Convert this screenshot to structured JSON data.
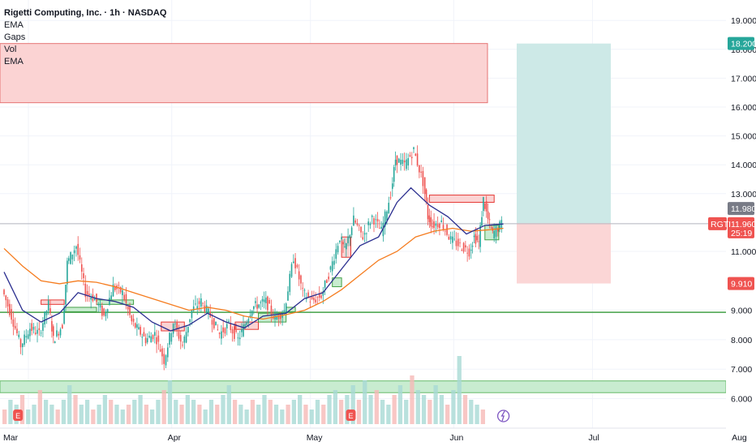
{
  "header": {
    "title": "Rigetti Computing, Inc. · 1h · NASDAQ",
    "indicators": [
      "EMA",
      "Gaps",
      "Vol",
      "EMA"
    ]
  },
  "colors": {
    "up": "#26a69a",
    "down": "#ef5350",
    "ema_fast": "#2a2e8f",
    "ema_slow": "#f57c1f",
    "support_line": "#43a047",
    "gap_up_fill": "#c8ecd0",
    "gap_down_fill": "#fbd3d3",
    "target_fill": "#cde9e7",
    "stop_fill": "#fbd6d6",
    "grid": "#f0f3fa"
  },
  "chart_data": {
    "type": "candlestick",
    "symbol": "RGTI",
    "ylim": [
      5.0,
      19.0
    ],
    "y_ticks": [
      "6.000",
      "7.000",
      "8.000",
      "9.000",
      "11.000",
      "13.000",
      "14.000",
      "15.000",
      "16.000",
      "17.000",
      "18.000",
      "19.000"
    ],
    "x_ticks": [
      "Mar",
      "Apr",
      "May",
      "Jun",
      "Jul",
      "Aug"
    ],
    "dates_start": "2025-03-01",
    "price_labels": {
      "target": "18.200",
      "entry": "11.980",
      "last_symbol": "RGTI",
      "last_price": "11.960",
      "countdown": "25:19",
      "stop": "9.910"
    },
    "levels": {
      "target": 18.2,
      "entry": 11.98,
      "last": 11.96,
      "stop": 9.91,
      "support_line": 8.93,
      "resistance_zone": [
        16.15,
        18.2
      ],
      "support_zone": [
        6.2,
        6.6
      ]
    },
    "price_path": [
      [
        "2025-03-01",
        9.7
      ],
      [
        "2025-03-03",
        8.8
      ],
      [
        "2025-03-05",
        7.8
      ],
      [
        "2025-03-07",
        8.4
      ],
      [
        "2025-03-09",
        8.2
      ],
      [
        "2025-03-11",
        9.2
      ],
      [
        "2025-03-12",
        8.0
      ],
      [
        "2025-03-14",
        8.5
      ],
      [
        "2025-03-15",
        10.6
      ],
      [
        "2025-03-17",
        11.2
      ],
      [
        "2025-03-19",
        9.6
      ],
      [
        "2025-03-21",
        9.4
      ],
      [
        "2025-03-23",
        8.8
      ],
      [
        "2025-03-25",
        9.8
      ],
      [
        "2025-03-27",
        9.6
      ],
      [
        "2025-03-29",
        8.6
      ],
      [
        "2025-04-01",
        8.0
      ],
      [
        "2025-04-03",
        8.2
      ],
      [
        "2025-04-05",
        7.3
      ],
      [
        "2025-04-07",
        8.6
      ],
      [
        "2025-04-09",
        7.8
      ],
      [
        "2025-04-11",
        9.0
      ],
      [
        "2025-04-13",
        9.3
      ],
      [
        "2025-04-15",
        8.8
      ],
      [
        "2025-04-17",
        8.2
      ],
      [
        "2025-04-19",
        8.5
      ],
      [
        "2025-04-21",
        8.0
      ],
      [
        "2025-04-24",
        9.1
      ],
      [
        "2025-04-27",
        9.3
      ],
      [
        "2025-04-29",
        8.7
      ],
      [
        "2025-05-01",
        9.0
      ],
      [
        "2025-05-03",
        10.8
      ],
      [
        "2025-05-05",
        9.6
      ],
      [
        "2025-05-07",
        9.3
      ],
      [
        "2025-05-09",
        9.5
      ],
      [
        "2025-05-11",
        10.4
      ],
      [
        "2025-05-13",
        11.5
      ],
      [
        "2025-05-14",
        11.0
      ],
      [
        "2025-05-16",
        12.1
      ],
      [
        "2025-05-18",
        11.5
      ],
      [
        "2025-05-20",
        12.2
      ],
      [
        "2025-05-22",
        11.7
      ],
      [
        "2025-05-24",
        13.0
      ],
      [
        "2025-05-25",
        14.2
      ],
      [
        "2025-05-27",
        14.0
      ],
      [
        "2025-05-29",
        14.5
      ],
      [
        "2025-05-31",
        13.4
      ],
      [
        "2025-06-01",
        12.2
      ],
      [
        "2025-06-02",
        11.9
      ],
      [
        "2025-06-04",
        12.0
      ],
      [
        "2025-06-06",
        11.4
      ],
      [
        "2025-06-08",
        11.2
      ],
      [
        "2025-06-10",
        11.0
      ],
      [
        "2025-06-11",
        11.5
      ],
      [
        "2025-06-12",
        11.3
      ],
      [
        "2025-06-13",
        12.8
      ],
      [
        "2025-06-14",
        12.1
      ],
      [
        "2025-06-15",
        11.6
      ],
      [
        "2025-06-17",
        11.96
      ]
    ],
    "ema_fast": [
      [
        "2025-03-01",
        10.3
      ],
      [
        "2025-03-05",
        9.0
      ],
      [
        "2025-03-09",
        8.6
      ],
      [
        "2025-03-13",
        8.9
      ],
      [
        "2025-03-17",
        9.6
      ],
      [
        "2025-03-21",
        9.4
      ],
      [
        "2025-03-25",
        9.3
      ],
      [
        "2025-03-29",
        9.1
      ],
      [
        "2025-04-02",
        8.6
      ],
      [
        "2025-04-06",
        8.3
      ],
      [
        "2025-04-10",
        8.5
      ],
      [
        "2025-04-14",
        8.9
      ],
      [
        "2025-04-18",
        8.6
      ],
      [
        "2025-04-22",
        8.4
      ],
      [
        "2025-04-26",
        8.8
      ],
      [
        "2025-05-01",
        8.9
      ],
      [
        "2025-05-05",
        9.4
      ],
      [
        "2025-05-09",
        9.6
      ],
      [
        "2025-05-13",
        10.4
      ],
      [
        "2025-05-17",
        11.2
      ],
      [
        "2025-05-21",
        11.5
      ],
      [
        "2025-05-25",
        12.7
      ],
      [
        "2025-05-28",
        13.2
      ],
      [
        "2025-06-01",
        12.6
      ],
      [
        "2025-06-05",
        12.2
      ],
      [
        "2025-06-09",
        11.6
      ],
      [
        "2025-06-13",
        11.9
      ],
      [
        "2025-06-17",
        11.95
      ]
    ],
    "ema_slow": [
      [
        "2025-03-01",
        11.1
      ],
      [
        "2025-03-05",
        10.5
      ],
      [
        "2025-03-09",
        10.0
      ],
      [
        "2025-03-13",
        9.9
      ],
      [
        "2025-03-17",
        10.0
      ],
      [
        "2025-03-21",
        9.95
      ],
      [
        "2025-03-25",
        9.8
      ],
      [
        "2025-03-29",
        9.6
      ],
      [
        "2025-04-02",
        9.4
      ],
      [
        "2025-04-06",
        9.2
      ],
      [
        "2025-04-10",
        9.0
      ],
      [
        "2025-04-14",
        9.1
      ],
      [
        "2025-04-18",
        9.0
      ],
      [
        "2025-04-22",
        8.8
      ],
      [
        "2025-04-26",
        8.7
      ],
      [
        "2025-05-01",
        8.85
      ],
      [
        "2025-05-05",
        9.0
      ],
      [
        "2025-05-09",
        9.3
      ],
      [
        "2025-05-13",
        9.7
      ],
      [
        "2025-05-17",
        10.2
      ],
      [
        "2025-05-21",
        10.7
      ],
      [
        "2025-05-25",
        11.0
      ],
      [
        "2025-05-29",
        11.5
      ],
      [
        "2025-06-02",
        11.7
      ],
      [
        "2025-06-06",
        11.8
      ],
      [
        "2025-06-10",
        11.7
      ],
      [
        "2025-06-14",
        11.75
      ],
      [
        "2025-06-17",
        11.8
      ]
    ],
    "gaps": [
      {
        "dir": "down",
        "from": "2025-03-09",
        "to": "2025-03-14",
        "top": 9.35,
        "bottom": 9.2
      },
      {
        "dir": "up",
        "from": "2025-03-14",
        "to": "2025-03-21",
        "top": 9.1,
        "bottom": 8.95
      },
      {
        "dir": "up",
        "from": "2025-03-21",
        "to": "2025-03-29",
        "top": 9.35,
        "bottom": 9.2
      },
      {
        "dir": "down",
        "from": "2025-04-04",
        "to": "2025-04-09",
        "top": 8.6,
        "bottom": 8.3
      },
      {
        "dir": "down",
        "from": "2025-04-20",
        "to": "2025-04-25",
        "top": 8.6,
        "bottom": 8.35
      },
      {
        "dir": "up",
        "from": "2025-04-25",
        "to": "2025-05-01",
        "top": 8.9,
        "bottom": 8.6
      },
      {
        "dir": "up",
        "from": "2025-05-01",
        "to": "2025-05-03",
        "top": 9.1,
        "bottom": 8.95
      },
      {
        "dir": "down",
        "from": "2025-05-13",
        "to": "2025-05-15",
        "top": 11.5,
        "bottom": 10.8
      },
      {
        "dir": "up",
        "from": "2025-05-11",
        "to": "2025-05-13",
        "top": 10.1,
        "bottom": 9.8
      },
      {
        "dir": "down",
        "from": "2025-06-01",
        "to": "2025-06-15",
        "top": 12.95,
        "bottom": 12.7
      },
      {
        "dir": "up",
        "from": "2025-06-13",
        "to": "2025-06-16",
        "top": 11.9,
        "bottom": 11.4
      }
    ],
    "volume": [
      3,
      5,
      4,
      6,
      3,
      4,
      7,
      5,
      4,
      3,
      5,
      8,
      6,
      4,
      5,
      3,
      4,
      6,
      5,
      4,
      3,
      4,
      5,
      6,
      4,
      3,
      5,
      7,
      9,
      5,
      4,
      6,
      5,
      4,
      3,
      5,
      4,
      6,
      8,
      5,
      4,
      3,
      5,
      4,
      6,
      5,
      4,
      3,
      4,
      5,
      6,
      4,
      3,
      5,
      4,
      6,
      7,
      5,
      6,
      8,
      5,
      9,
      6,
      7,
      5,
      4,
      6,
      8,
      5,
      10,
      7,
      6,
      5,
      8,
      6,
      4,
      7,
      14,
      6,
      5,
      4,
      3
    ],
    "earnings_markers": [
      "2025-03-04",
      "2025-05-15"
    ],
    "dividend_marker": "2025-06-17",
    "grid": true
  }
}
